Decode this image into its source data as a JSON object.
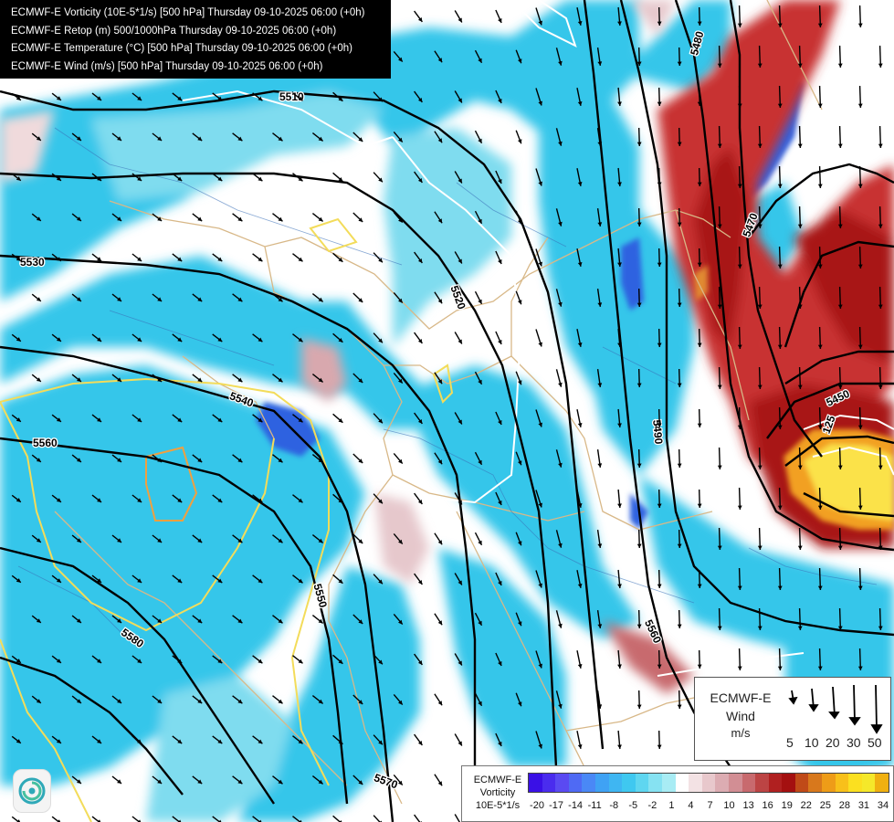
{
  "titles": [
    "ECMWF-E Vorticity (10E-5*1/s) [500 hPa] Thursday 09-10-2025 06:00 (+0h)",
    "ECMWF-E Retop (m) 500/1000hPa Thursday 09-10-2025 06:00 (+0h)",
    "ECMWF-E Temperature (°C) [500 hPa] Thursday 09-10-2025 06:00 (+0h)",
    "ECMWF-E Wind (m/s) [500 hPa] Thursday 09-10-2025 06:00 (+0h)"
  ],
  "contour_labels": [
    "5480",
    "5510",
    "5470",
    "5530",
    "5520",
    "5540",
    "5450",
    "5490",
    "5560",
    "5550",
    "5560",
    "5580",
    "5570",
    "125"
  ],
  "wind_legend": {
    "title_line1": "ECMWF-E",
    "title_line2": "Wind",
    "unit": "m/s",
    "speeds": [
      "5",
      "10",
      "20",
      "30",
      "50"
    ]
  },
  "color_legend": {
    "title_line1": "ECMWF-E",
    "title_line2": "Vorticity",
    "title_line3": "10E-5*1/s",
    "ticks": [
      "-20",
      "-17",
      "-14",
      "-11",
      "-8",
      "-5",
      "-2",
      "1",
      "4",
      "7",
      "10",
      "13",
      "16",
      "19",
      "22",
      "25",
      "28",
      "31",
      "34"
    ],
    "colors": [
      "#3a10e6",
      "#4a2cee",
      "#5a4af2",
      "#4f6af4",
      "#4a88f6",
      "#3fa2f4",
      "#3fb6f2",
      "#3fc8f0",
      "#5fd6f0",
      "#86e2f2",
      "#a8ecf4",
      "#ffffff",
      "#f3e2e4",
      "#e8c8cc",
      "#dcacb2",
      "#d28e94",
      "#c86a6e",
      "#bc4444",
      "#b02020",
      "#a41010",
      "#c04a18",
      "#d8781c",
      "#ee9c18",
      "#f8c01a",
      "#fbe020",
      "#f5e82a",
      "#f0b010"
    ]
  },
  "colors": {
    "cyan": "#35c6ea",
    "light_cyan": "#7fdcef",
    "dark_blue": "#2f62e0",
    "dark_red": "#a81212",
    "red": "#c83030",
    "pink": "#e6c8cc",
    "orange": "#f2a020",
    "yellow": "#fbe24a",
    "border_tan": "#d8b888",
    "river_blue": "#3a6fb8",
    "isotherm_yellow": "#f3dc5a",
    "isotherm_orange": "#f0a040"
  }
}
